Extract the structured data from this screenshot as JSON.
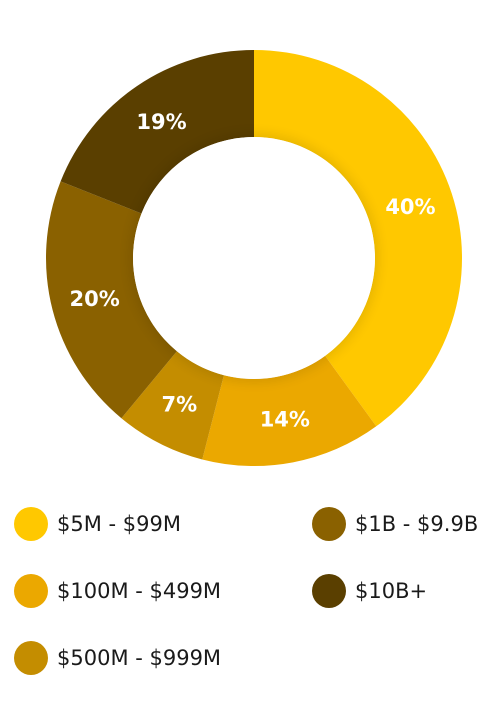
{
  "chart_data": {
    "type": "pie",
    "donut": true,
    "categories": [
      "$5M - $99M",
      "$100M - $499M",
      "$500M - $999M",
      "$1B - $9.9B",
      "$10B+"
    ],
    "values": [
      40,
      14,
      7,
      20,
      19
    ],
    "value_labels": [
      "40%",
      "14%",
      "7%",
      "20%",
      "19%"
    ],
    "colors": [
      "#FFC800",
      "#EBA800",
      "#C48D00",
      "#8A6100",
      "#5A3F00"
    ],
    "legend": "bottom",
    "title": ""
  }
}
